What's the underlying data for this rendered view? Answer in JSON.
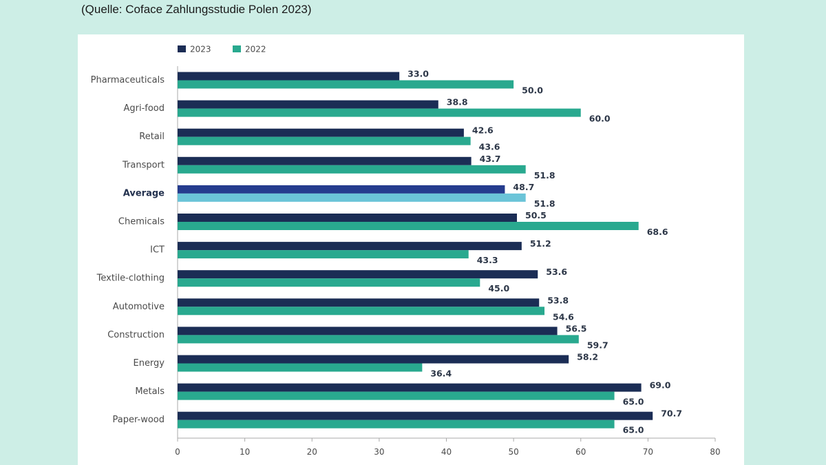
{
  "header": {
    "source": "(Quelle: Coface Zahlungsstudie Polen 2023)"
  },
  "colors": {
    "page_bg": "#cdeee6",
    "series_2023": "#1b2d55",
    "series_2022": "#29a98f",
    "avg_2023": "#253c8e",
    "avg_2022": "#6bc4d8",
    "axis": "#a9a9a9",
    "label": "#4a4a4a",
    "value_label": "#2d3748"
  },
  "chart_data": {
    "type": "bar",
    "orientation": "horizontal",
    "categories": [
      "Pharmaceuticals",
      "Agri-food",
      "Retail",
      "Transport",
      "Average",
      "Chemicals",
      "ICT",
      "Textile-clothing",
      "Automotive",
      "Construction",
      "Energy",
      "Metals",
      "Paper-wood"
    ],
    "highlight_category": "Average",
    "series": [
      {
        "name": "2023",
        "values": [
          33.0,
          38.8,
          42.6,
          43.7,
          48.7,
          50.5,
          51.2,
          53.6,
          53.8,
          56.5,
          58.2,
          69.0,
          70.7
        ]
      },
      {
        "name": "2022",
        "values": [
          50.0,
          60.0,
          43.6,
          51.8,
          51.8,
          68.6,
          43.3,
          45.0,
          54.6,
          59.7,
          36.4,
          65.0,
          65.0
        ]
      }
    ],
    "value_labels": [
      [
        "33.0",
        "38.8",
        "42.6",
        "43.7",
        "48.7",
        "50.5",
        "51.2",
        "53.6",
        "53.8",
        "56.5",
        "58.2",
        "69.0",
        "70.7"
      ],
      [
        "50.0",
        "60.0",
        "43.6",
        "51.8",
        "51.8",
        "68.6",
        "43.3",
        "45.0",
        "54.6",
        "59.7",
        "36.4",
        "65.0",
        "65.0"
      ]
    ],
    "xlim": [
      0,
      80
    ],
    "xticks": [
      0,
      10,
      20,
      30,
      40,
      50,
      60,
      70,
      80
    ],
    "title": "",
    "xlabel": "",
    "ylabel": "",
    "legend": [
      "2023",
      "2022"
    ],
    "legend_position": "top-left",
    "grid": false
  }
}
